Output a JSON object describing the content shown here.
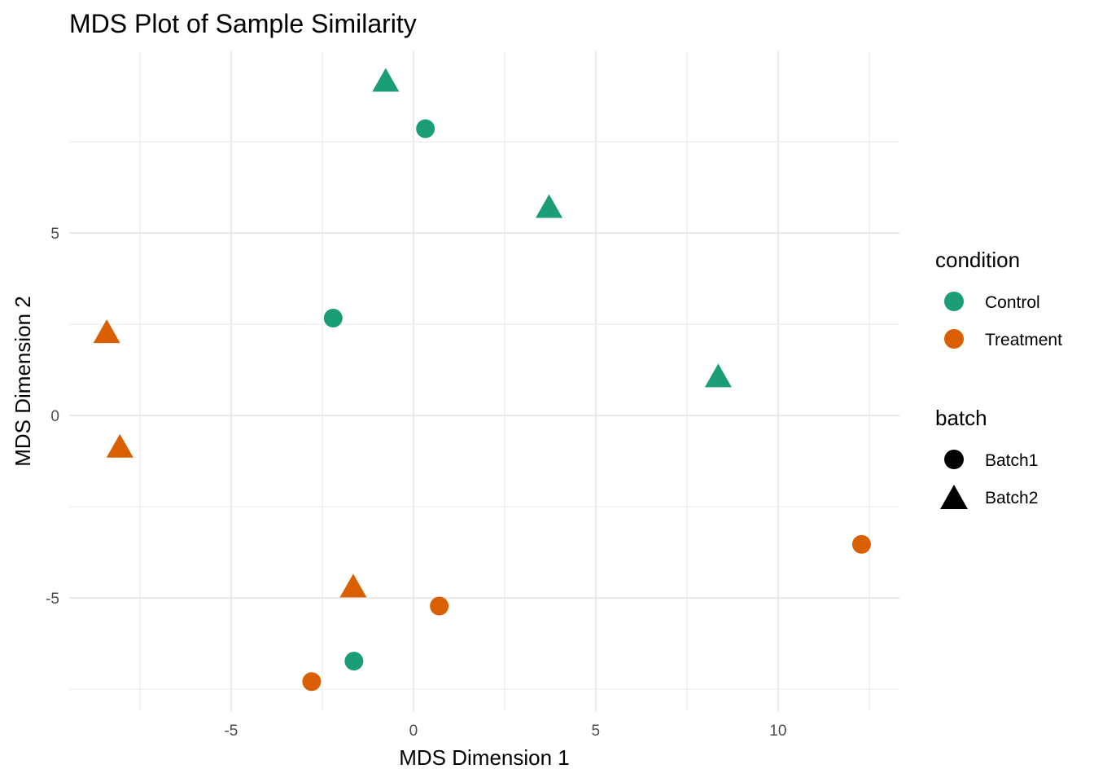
{
  "chart_data": {
    "type": "scatter",
    "title": "MDS Plot of Sample Similarity",
    "xlabel": "MDS Dimension 1",
    "ylabel": "MDS Dimension 2",
    "xlim": [
      -9.44,
      13.33
    ],
    "ylim": [
      -8.1,
      9.98
    ],
    "x_ticks": [
      -5,
      0,
      5,
      10
    ],
    "x_tick_labels": [
      "-5",
      "0",
      "5",
      "10"
    ],
    "x_minor": [
      -7.5,
      -2.5,
      2.5,
      7.5,
      12.5
    ],
    "y_ticks": [
      -5,
      0,
      5
    ],
    "y_tick_labels": [
      "-5",
      "0",
      "5"
    ],
    "y_minor": [
      -7.5,
      -2.5,
      2.5,
      7.5
    ],
    "grid": true,
    "legend_position": "right",
    "legends": [
      {
        "title": "condition",
        "entries": [
          {
            "label": "Control",
            "color": "#1b9e77",
            "shape": "circle"
          },
          {
            "label": "Treatment",
            "color": "#d95f02",
            "shape": "circle"
          }
        ]
      },
      {
        "title": "batch",
        "entries": [
          {
            "label": "Batch1",
            "color": "#000000",
            "shape": "circle"
          },
          {
            "label": "Batch2",
            "color": "#000000",
            "shape": "triangle"
          }
        ]
      }
    ],
    "colors": {
      "Control": "#1b9e77",
      "Treatment": "#d95f02"
    },
    "shapes": {
      "Batch1": "circle",
      "Batch2": "triangle"
    },
    "points": [
      {
        "x": -0.76,
        "y": 9.2,
        "condition": "Control",
        "batch": "Batch2"
      },
      {
        "x": 0.33,
        "y": 7.86,
        "condition": "Control",
        "batch": "Batch1"
      },
      {
        "x": 3.72,
        "y": 5.74,
        "condition": "Control",
        "batch": "Batch2"
      },
      {
        "x": -2.2,
        "y": 2.67,
        "condition": "Control",
        "batch": "Batch1"
      },
      {
        "x": 8.36,
        "y": 1.1,
        "condition": "Control",
        "batch": "Batch2"
      },
      {
        "x": -1.63,
        "y": -6.73,
        "condition": "Control",
        "batch": "Batch1"
      },
      {
        "x": -8.41,
        "y": 2.31,
        "condition": "Treatment",
        "batch": "Batch2"
      },
      {
        "x": -8.05,
        "y": -0.83,
        "condition": "Treatment",
        "batch": "Batch2"
      },
      {
        "x": -1.65,
        "y": -4.66,
        "condition": "Treatment",
        "batch": "Batch2"
      },
      {
        "x": 0.71,
        "y": -5.22,
        "condition": "Treatment",
        "batch": "Batch1"
      },
      {
        "x": -2.79,
        "y": -7.29,
        "condition": "Treatment",
        "batch": "Batch1"
      },
      {
        "x": 12.29,
        "y": -3.53,
        "condition": "Treatment",
        "batch": "Batch1"
      }
    ]
  }
}
